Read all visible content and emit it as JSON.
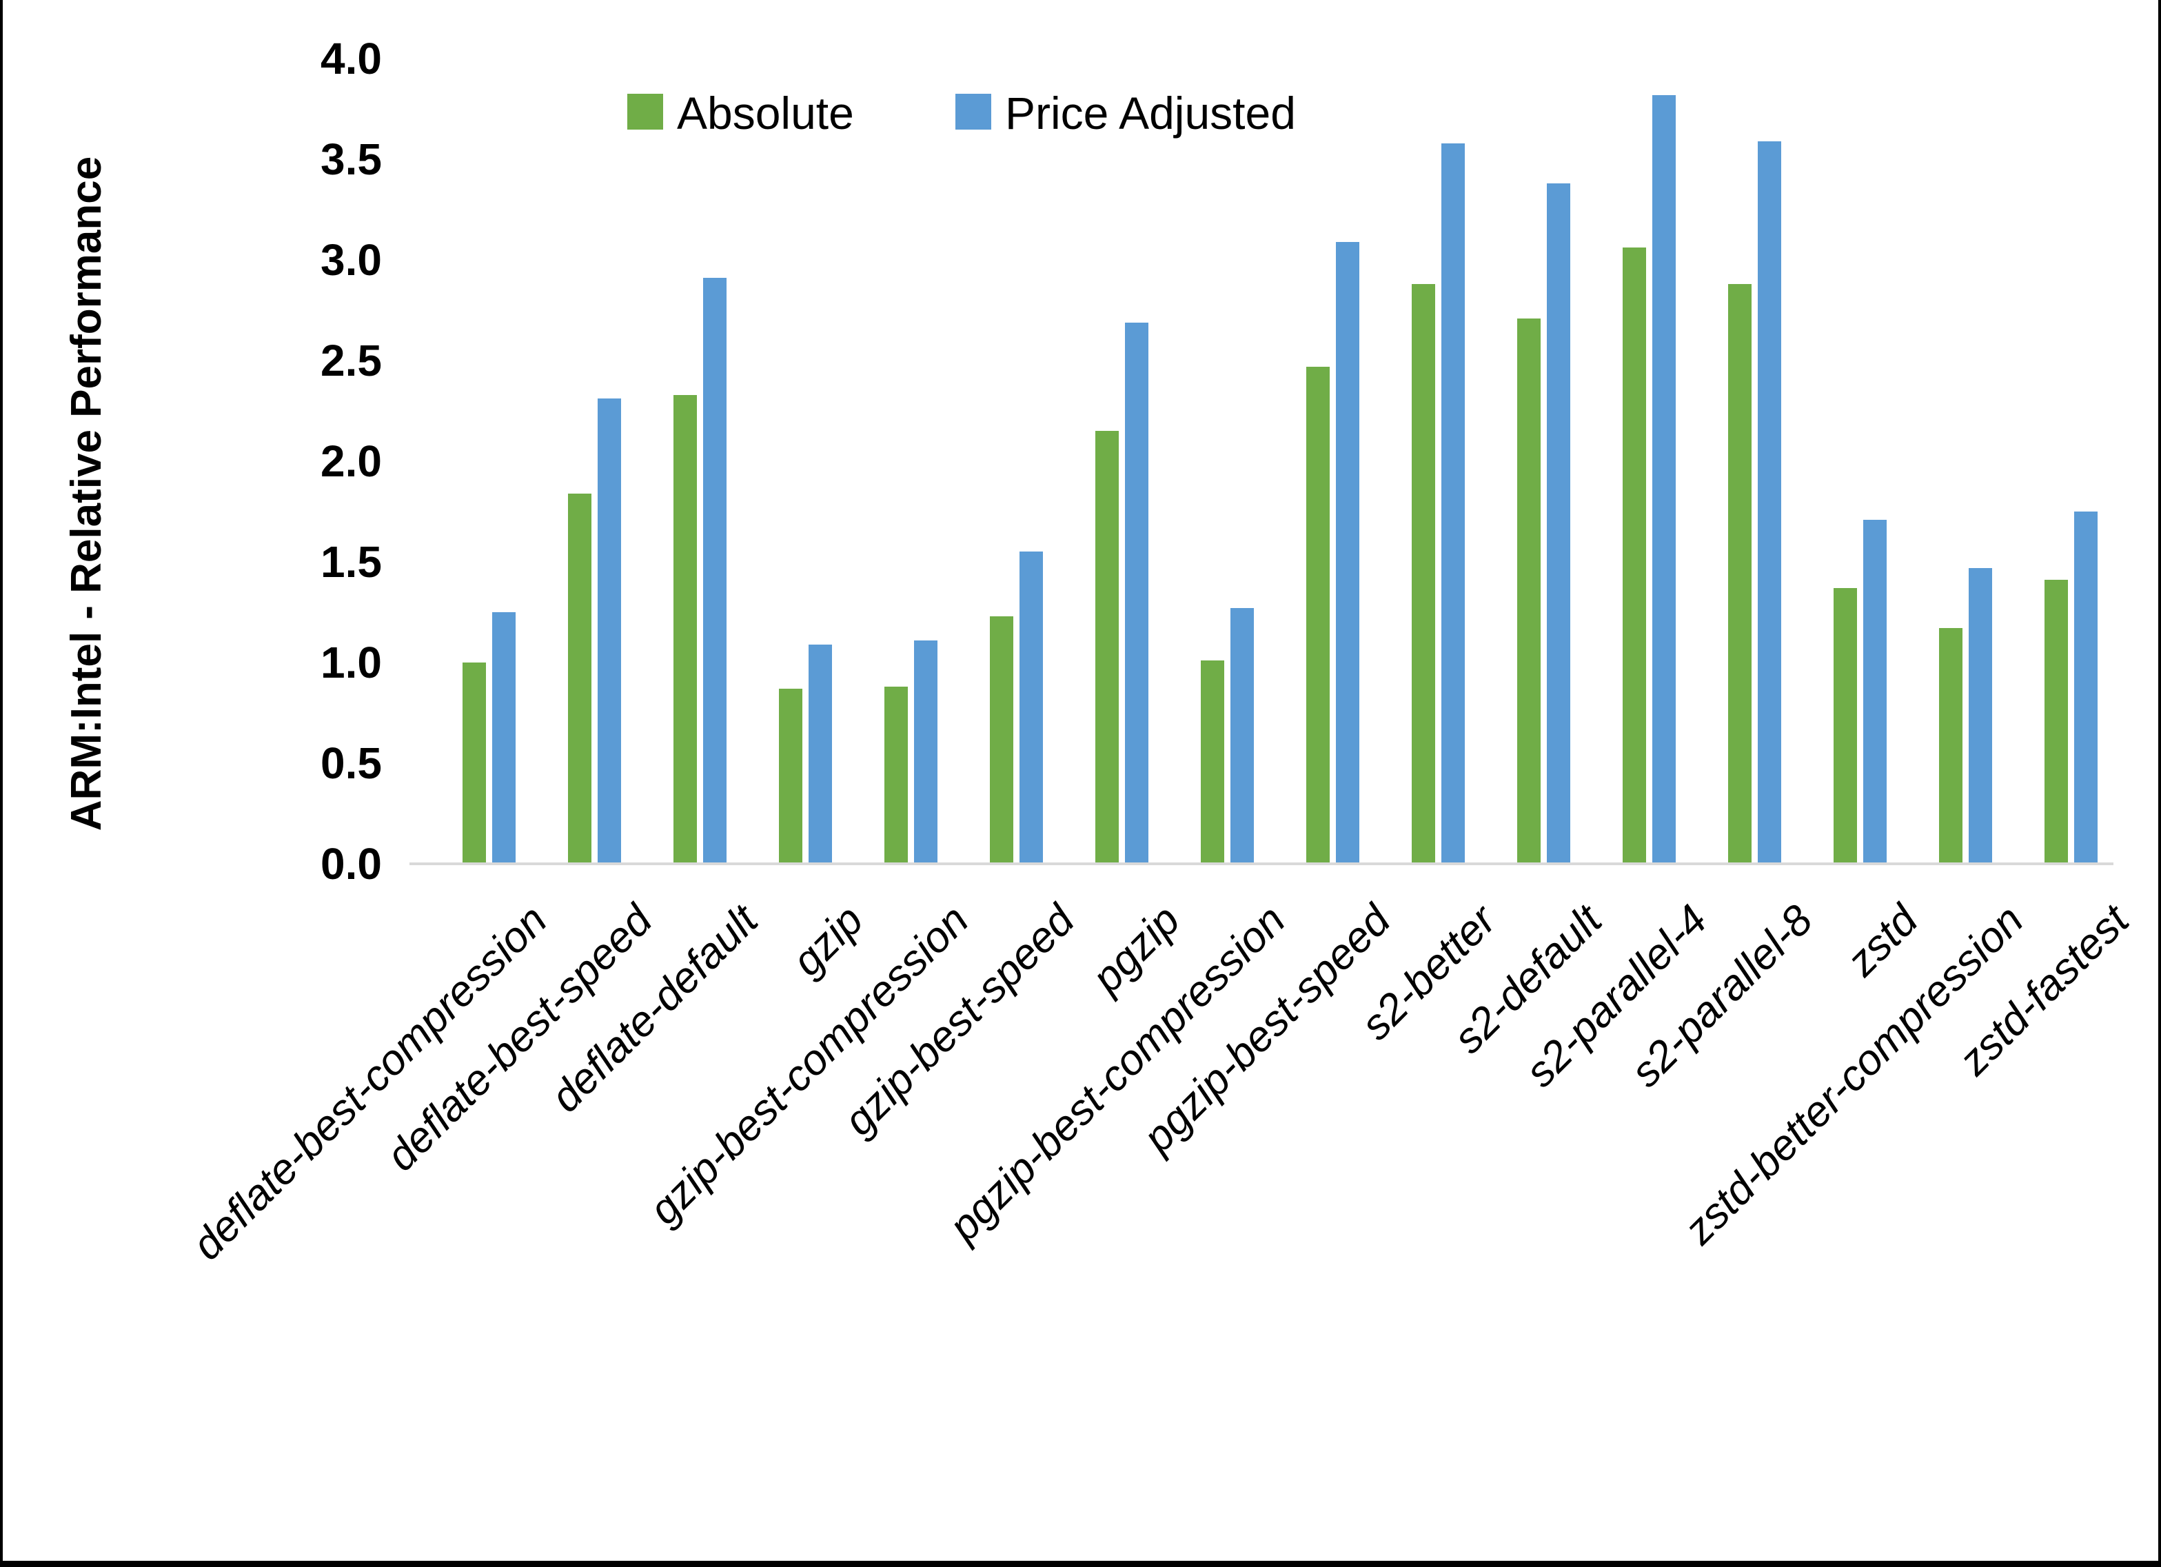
{
  "chart_data": {
    "type": "bar",
    "title": "",
    "ylabel": "ARM:Intel - Relative Performance",
    "xlabel": "",
    "ylim": [
      0.0,
      4.0
    ],
    "ytick_step": 0.5,
    "yticks": [
      "4.0",
      "3.5",
      "3.0",
      "2.5",
      "2.0",
      "1.5",
      "1.0",
      "0.5",
      "0.0"
    ],
    "grid": false,
    "legend_position": "top-center",
    "categories": [
      "deflate-best-compression",
      "deflate-best-speed",
      "deflate-default",
      "gzip",
      "gzip-best-compression",
      "gzip-best-speed",
      "pgzip",
      "pgzip-best-compression",
      "pgzip-best-speed",
      "s2-better",
      "s2-default",
      "s2-parallel-4",
      "s2-parallel-8",
      "zstd",
      "zstd-better-compression",
      "zstd-fastest"
    ],
    "series": [
      {
        "name": "Absolute",
        "color": "#70AD47",
        "values": [
          1.0,
          1.84,
          2.33,
          0.87,
          0.88,
          1.23,
          2.15,
          1.01,
          2.47,
          2.88,
          2.71,
          3.06,
          2.88,
          1.37,
          1.17,
          1.41
        ]
      },
      {
        "name": "Price Adjusted",
        "color": "#5B9BD5",
        "values": [
          1.25,
          2.31,
          2.91,
          1.09,
          1.11,
          1.55,
          2.69,
          1.27,
          3.09,
          3.58,
          3.38,
          3.82,
          3.59,
          1.71,
          1.47,
          1.75
        ]
      }
    ]
  },
  "colors": {
    "background": "#FFFFFF",
    "frame": "#000000",
    "axis_line": "#D9D9D9",
    "text": "#000000",
    "series_green": "#70AD47",
    "series_blue": "#5B9BD5"
  }
}
